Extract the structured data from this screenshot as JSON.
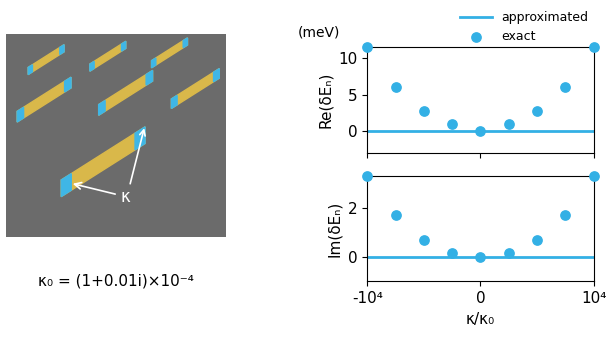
{
  "chart_data": [
    {
      "type": "line",
      "ylabel": "Re(δEₙ)",
      "annotations": [
        "(meV)"
      ],
      "xlim": [
        -10000,
        10000
      ],
      "xticks": [
        {
          "value": -10000,
          "label": "-10⁴"
        },
        0,
        {
          "value": 10000,
          "label": "10⁴"
        }
      ],
      "ylim": [
        -3,
        11.5
      ],
      "yticks": [
        0,
        5,
        10
      ],
      "tick_labels": "y",
      "legend": "upper right",
      "series": [
        {
          "name": "approximated",
          "type": "line",
          "color": "#33b0e5",
          "marker": "none",
          "line_style": "solid",
          "x": [
            -10000,
            -7500,
            -5000,
            -2500,
            0,
            2500,
            5000,
            7500,
            10000
          ],
          "values": [
            0,
            0,
            0,
            0,
            0,
            0,
            0,
            0,
            0
          ]
        },
        {
          "name": "exact",
          "type": "scatter",
          "color": "#33b0e5",
          "marker": "o",
          "line_style": "none",
          "x": [
            -10000,
            -7500,
            -5000,
            -2500,
            0,
            2500,
            5000,
            7500,
            10000
          ],
          "values": [
            11.5,
            6,
            2.7,
            0.9,
            0,
            0.9,
            2.7,
            6,
            11.5
          ]
        }
      ]
    },
    {
      "type": "line",
      "ylabel": "Im(δEₙ)",
      "xlabel": "κ/κ₀",
      "xlim": [
        -10000,
        10000
      ],
      "xticks": [
        {
          "value": -10000,
          "label": "-10⁴"
        },
        0,
        {
          "value": 10000,
          "label": "10⁴"
        }
      ],
      "ylim": [
        -1,
        3.3
      ],
      "yticks": [
        0,
        2
      ],
      "series": [
        {
          "name": "approximated",
          "type": "line",
          "color": "#33b0e5",
          "marker": "none",
          "line_style": "solid",
          "x": [
            -10000,
            -7500,
            -5000,
            -2500,
            0,
            2500,
            5000,
            7500,
            10000
          ],
          "values": [
            0,
            0,
            0,
            0,
            0,
            0,
            0,
            0,
            0
          ]
        },
        {
          "name": "exact",
          "type": "scatter",
          "color": "#33b0e5",
          "marker": "o",
          "line_style": "none",
          "x": [
            -10000,
            -7500,
            -5000,
            -2500,
            0,
            2500,
            5000,
            7500,
            10000
          ],
          "values": [
            3.3,
            1.7,
            0.7,
            0.15,
            0,
            0.15,
            0.7,
            1.7,
            3.3
          ]
        }
      ]
    }
  ],
  "image_labels": {
    "arrow_label": "κ",
    "caption": "κ₀ = (1+0.01i)×10⁻⁴"
  }
}
